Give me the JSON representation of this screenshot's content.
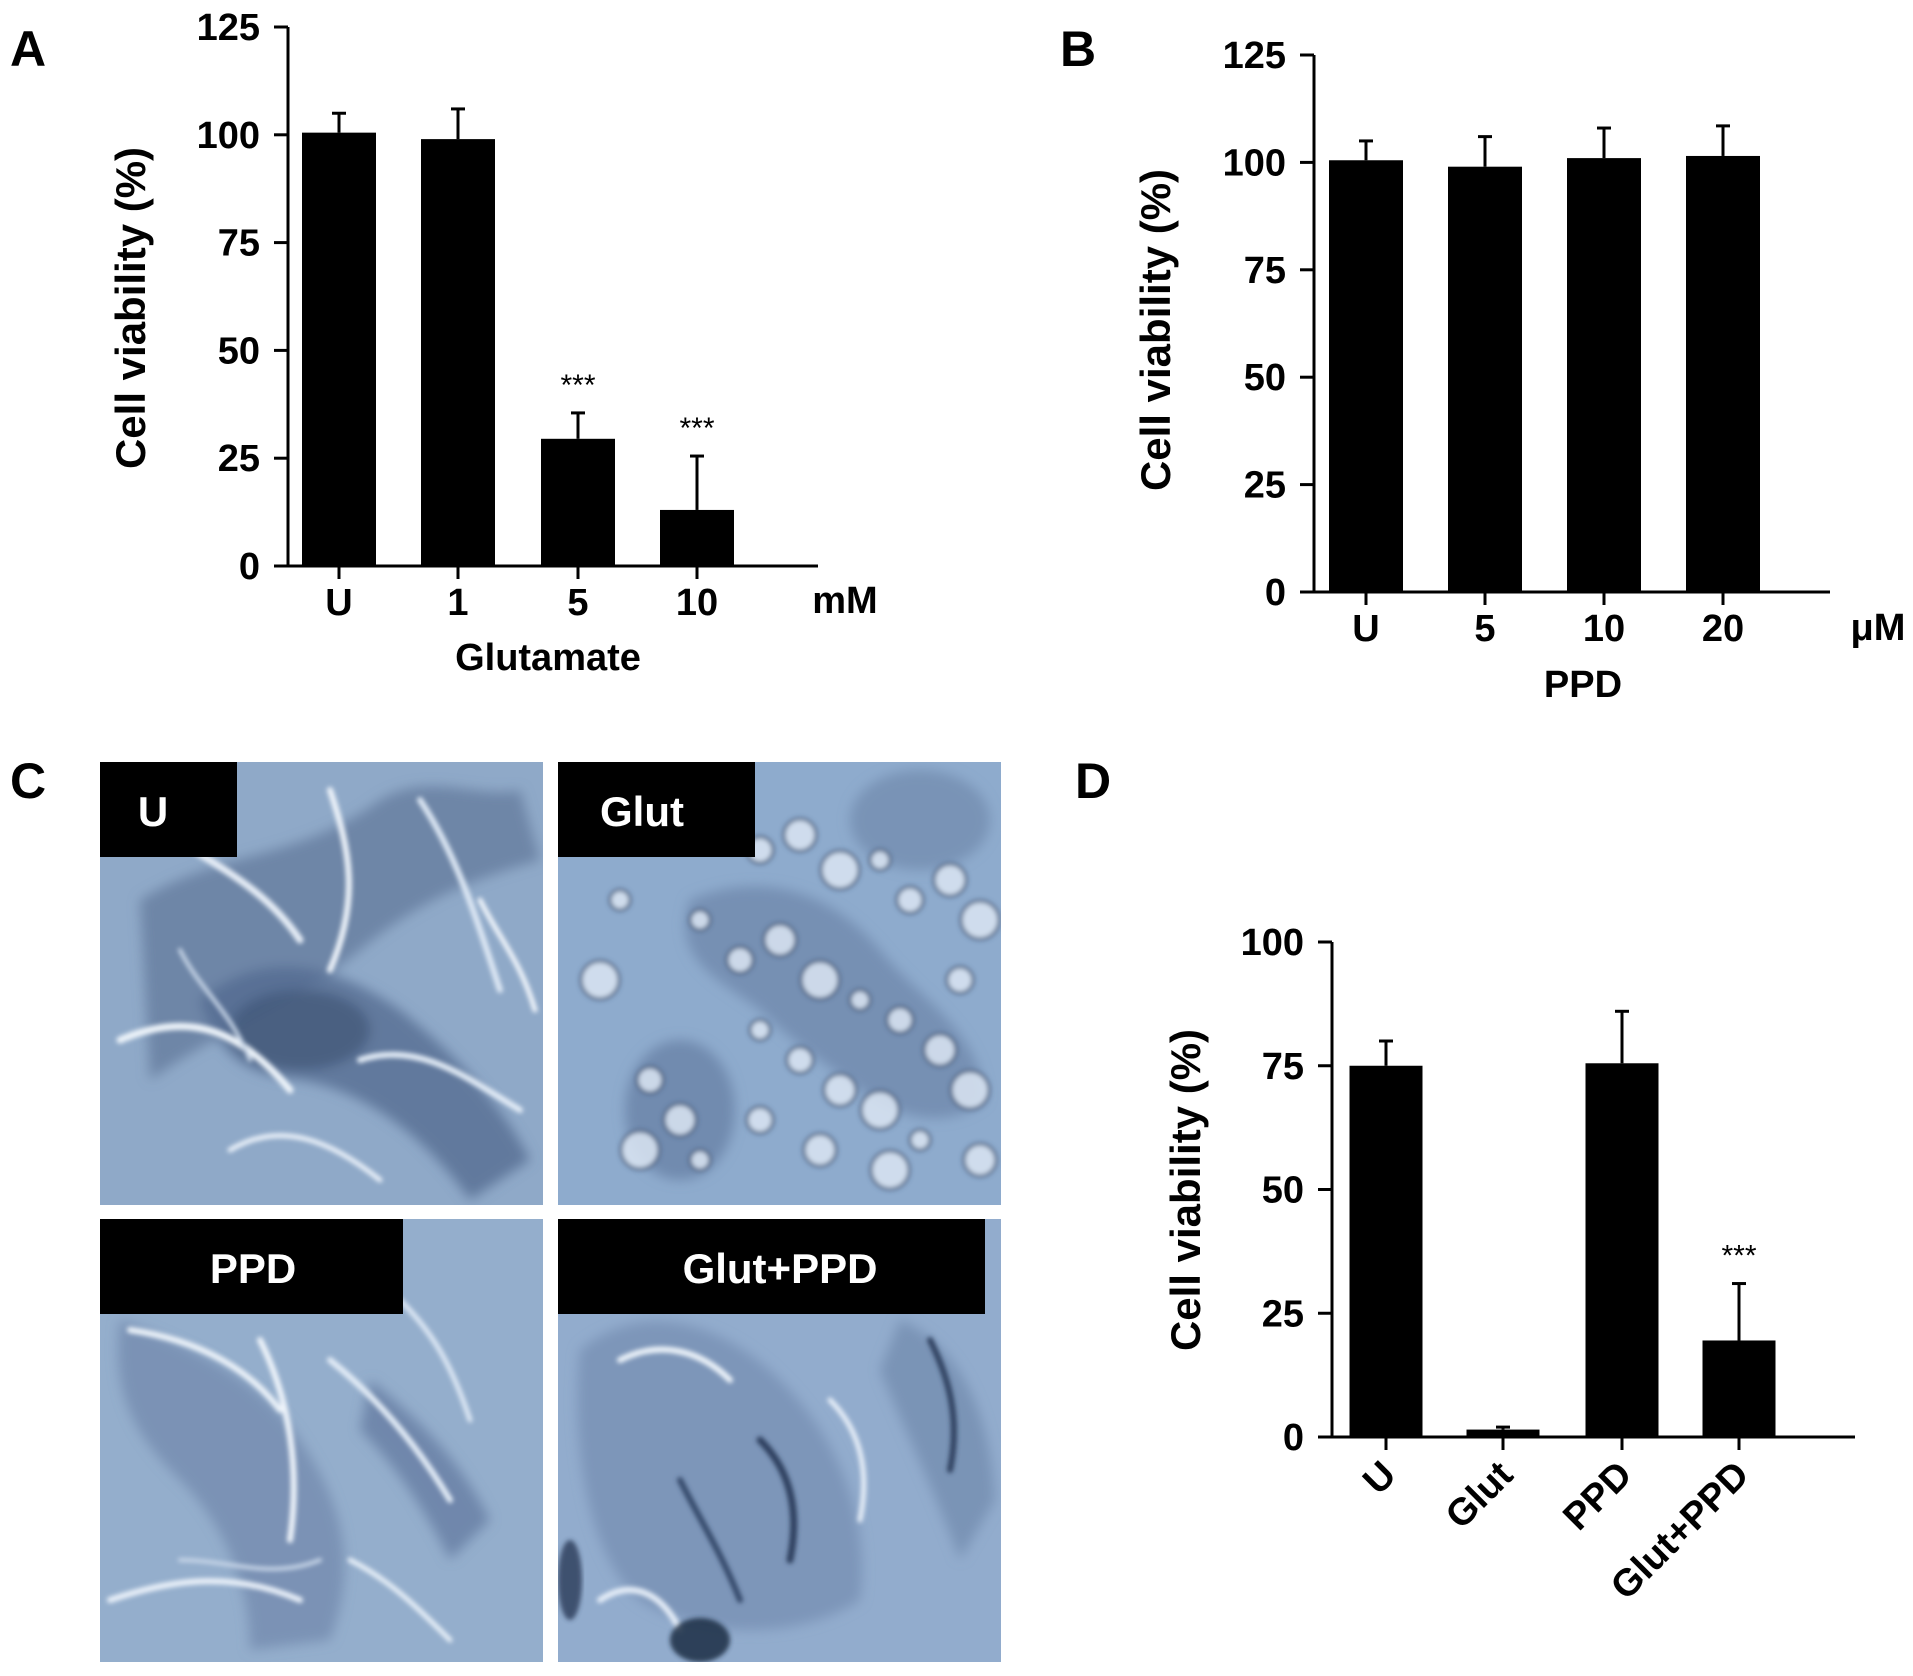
{
  "panels": {
    "A": {
      "letter": "A"
    },
    "B": {
      "letter": "B"
    },
    "C": {
      "letter": "C"
    },
    "D": {
      "letter": "D"
    }
  },
  "chart_data": [
    {
      "id": "A",
      "type": "bar",
      "categories": [
        "U",
        "1",
        "5",
        "10"
      ],
      "values": [
        100.5,
        99,
        29.5,
        13
      ],
      "errors": [
        4.5,
        7,
        6,
        12.5
      ],
      "significance": [
        "",
        "",
        "***",
        "***"
      ],
      "ylabel": "Cell viability (%)",
      "xlabel": "Glutamate",
      "unit": "mM",
      "ylim": [
        0,
        125
      ],
      "yticks": [
        0,
        25,
        50,
        75,
        100,
        125
      ]
    },
    {
      "id": "B",
      "type": "bar",
      "categories": [
        "U",
        "5",
        "10",
        "20"
      ],
      "values": [
        100.5,
        99,
        101,
        101.5
      ],
      "errors": [
        4.5,
        7,
        7,
        7
      ],
      "significance": [
        "",
        "",
        "",
        ""
      ],
      "ylabel": "Cell viability (%)",
      "xlabel": "PPD",
      "unit": "μM",
      "ylim": [
        0,
        125
      ],
      "yticks": [
        0,
        25,
        50,
        75,
        100,
        125
      ]
    },
    {
      "id": "D",
      "type": "bar",
      "categories": [
        "U",
        "Glut",
        "PPD",
        "Glut+PPD"
      ],
      "values": [
        75,
        1.5,
        75.5,
        19.5
      ],
      "errors": [
        5,
        0.5,
        10.5,
        11.5
      ],
      "significance": [
        "",
        "",
        "",
        "***"
      ],
      "ylabel": "Cell viability (%)",
      "xlabel": "",
      "unit": "",
      "ylim": [
        0,
        100
      ],
      "yticks": [
        0,
        25,
        50,
        75,
        100
      ]
    }
  ],
  "micrographs": [
    {
      "label": "U"
    },
    {
      "label": "Glut"
    },
    {
      "label": "PPD"
    },
    {
      "label": "Glut+PPD"
    }
  ],
  "colors": {
    "bar": "#000000",
    "micrograph_bg": "#8fa9c8",
    "cell": "#dbe6f2",
    "cell_shadow": "#3d5274"
  }
}
